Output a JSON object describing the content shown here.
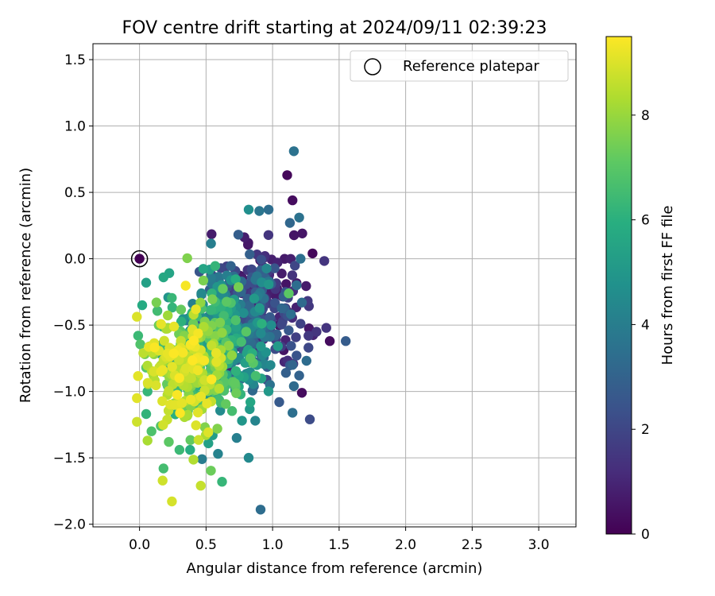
{
  "chart_data": {
    "type": "scatter",
    "title": "FOV centre drift starting at 2024/09/11 02:39:23",
    "xlabel": "Angular distance from reference (arcmin)",
    "ylabel": "Rotation from reference (arcmin)",
    "xlim": [
      -0.35,
      3.28
    ],
    "ylim": [
      -2.02,
      1.62
    ],
    "xticks": [
      "0.0",
      "0.5",
      "1.0",
      "1.5",
      "2.0",
      "2.5",
      "3.0"
    ],
    "yticks": [
      "−2.0",
      "−1.5",
      "−1.0",
      "−0.5",
      "0.0",
      "0.5",
      "1.0",
      "1.5"
    ],
    "grid": true,
    "legend": {
      "placement": "top-right",
      "entries": [
        "Reference platepar"
      ]
    },
    "reference_point": {
      "x": 0.0,
      "y": 0.0,
      "hours": 0.0
    },
    "colorbar": {
      "label": "Hours from first FF file",
      "colormap": "viridis",
      "range": [
        0,
        9.5
      ],
      "ticks": [
        "0",
        "2",
        "4",
        "6",
        "8"
      ]
    },
    "point_count": 900,
    "points": [
      [
        0.0,
        0.0,
        0.2
      ],
      [
        1.16,
        0.81,
        3.6
      ],
      [
        1.11,
        0.63,
        0.2
      ],
      [
        1.15,
        0.44,
        0.3
      ],
      [
        1.3,
        0.04,
        0.2
      ],
      [
        1.43,
        -0.62,
        0.3
      ],
      [
        1.55,
        -0.62,
        2.8
      ],
      [
        1.22,
        -1.01,
        0.3
      ],
      [
        1.28,
        -1.21,
        2.2
      ],
      [
        1.27,
        -0.58,
        1.6
      ],
      [
        1.15,
        -1.16,
        3.5
      ],
      [
        1.05,
        -1.08,
        2.7
      ],
      [
        0.91,
        -1.89,
        3.4
      ],
      [
        0.46,
        -1.71,
        8.7
      ],
      [
        0.62,
        -1.68,
        6.3
      ],
      [
        0.18,
        -1.58,
        6.6
      ],
      [
        0.47,
        -1.51,
        4.0
      ],
      [
        0.59,
        -1.47,
        4.2
      ],
      [
        0.82,
        -1.5,
        4.5
      ],
      [
        0.06,
        -1.37,
        8.3
      ],
      [
        0.73,
        -1.35,
        4.1
      ],
      [
        0.9,
        0.36,
        3.7
      ],
      [
        0.97,
        0.37,
        3.4
      ],
      [
        0.82,
        0.37,
        4.7
      ],
      [
        1.2,
        0.31,
        3.6
      ],
      [
        1.13,
        0.27,
        3.2
      ],
      [
        1.18,
        -0.2,
        3.4
      ],
      [
        1.21,
        0.0,
        3.5
      ],
      [
        1.22,
        -0.33,
        3.3
      ],
      [
        1.21,
        -0.49,
        1.9
      ],
      [
        1.33,
        -0.55,
        1.5
      ],
      [
        1.27,
        -0.67,
        2.1
      ],
      [
        1.18,
        -0.73,
        2.5
      ],
      [
        1.15,
        -0.8,
        3.1
      ],
      [
        1.1,
        -0.86,
        2.9
      ],
      [
        1.16,
        -0.96,
        3.3
      ],
      [
        1.2,
        -0.88,
        3.0
      ],
      [
        -0.01,
        -0.58,
        6.4
      ],
      [
        0.02,
        -0.35,
        5.8
      ],
      [
        0.05,
        -0.18,
        5.4
      ],
      [
        0.18,
        -0.14,
        5.7
      ],
      [
        0.05,
        -0.82,
        7.0
      ],
      [
        0.06,
        -1.0,
        6.3
      ],
      [
        0.05,
        -1.17,
        6.2
      ],
      [
        0.09,
        -1.3,
        6.8
      ],
      [
        0.16,
        -1.26,
        6.9
      ],
      [
        0.22,
        -1.38,
        7.1
      ],
      [
        0.3,
        -1.44,
        6.4
      ],
      [
        0.38,
        -1.44,
        5.9
      ],
      [
        0.55,
        -1.33,
        5.3
      ],
      [
        0.77,
        -1.22,
        5.0
      ],
      [
        0.87,
        -1.22,
        4.3
      ],
      [
        0.98,
        -0.95,
        3.6
      ],
      [
        1.02,
        -0.68,
        2.2
      ],
      [
        0.98,
        -0.44,
        2.7
      ]
    ]
  }
}
